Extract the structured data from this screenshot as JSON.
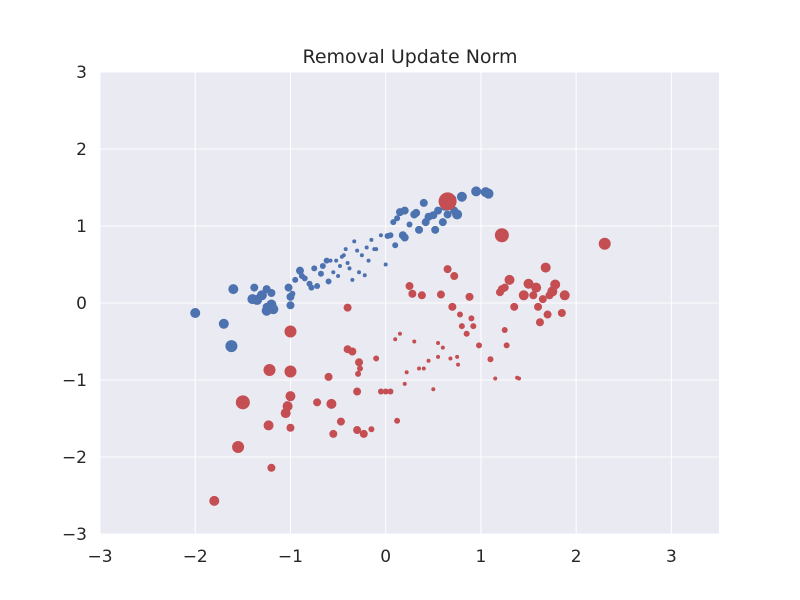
{
  "chart_data": {
    "type": "scatter",
    "title": "Removal Update Norm",
    "xlabel": "",
    "ylabel": "",
    "xlim": [
      -3,
      3.5
    ],
    "ylim": [
      -3,
      3
    ],
    "xticks": [
      -3,
      -2,
      -1,
      0,
      1,
      2,
      3
    ],
    "yticks": [
      -3,
      -2,
      -1,
      0,
      1,
      2,
      3
    ],
    "xtick_labels": [
      "−3",
      "−2",
      "−1",
      "0",
      "1",
      "2",
      "3"
    ],
    "ytick_labels": [
      "−3",
      "−2",
      "−1",
      "0",
      "1",
      "2",
      "3"
    ],
    "grid": true,
    "background": "#eaeaf2",
    "gridcolor": "#ffffff",
    "series": [
      {
        "color": "#4c72b0",
        "points": [
          [
            -2.0,
            -0.13,
            5
          ],
          [
            -1.7,
            -0.27,
            5
          ],
          [
            -1.6,
            0.18,
            5
          ],
          [
            -1.62,
            -0.56,
            6
          ],
          [
            -1.4,
            0.05,
            5
          ],
          [
            -1.35,
            0.04,
            5
          ],
          [
            -1.38,
            0.2,
            4
          ],
          [
            -1.3,
            0.1,
            5
          ],
          [
            -1.25,
            -0.05,
            4
          ],
          [
            -1.25,
            0.18,
            4
          ],
          [
            -1.2,
            0.13,
            4
          ],
          [
            -1.2,
            -0.02,
            5
          ],
          [
            -1.18,
            -0.08,
            5
          ],
          [
            -1.25,
            -0.1,
            5
          ],
          [
            -1.02,
            0.2,
            4
          ],
          [
            -1.0,
            0.08,
            4
          ],
          [
            -0.98,
            0.12,
            3
          ],
          [
            -1.0,
            -0.03,
            4
          ],
          [
            -0.95,
            0.3,
            3
          ],
          [
            -0.9,
            0.42,
            4
          ],
          [
            -0.88,
            0.35,
            3
          ],
          [
            -0.85,
            0.32,
            3
          ],
          [
            -0.8,
            0.25,
            3
          ],
          [
            -0.78,
            0.2,
            3
          ],
          [
            -0.75,
            0.45,
            3
          ],
          [
            -0.72,
            0.22,
            3
          ],
          [
            -0.68,
            0.38,
            3
          ],
          [
            -0.66,
            0.48,
            3
          ],
          [
            -0.62,
            0.55,
            3
          ],
          [
            -0.6,
            0.28,
            3
          ],
          [
            -0.58,
            0.55,
            2
          ],
          [
            -0.55,
            0.4,
            2
          ],
          [
            -0.52,
            0.55,
            2
          ],
          [
            -0.5,
            0.35,
            2
          ],
          [
            -0.48,
            0.48,
            2
          ],
          [
            -0.46,
            0.6,
            2
          ],
          [
            -0.44,
            0.62,
            2
          ],
          [
            -0.42,
            0.7,
            2
          ],
          [
            -0.4,
            0.52,
            2
          ],
          [
            -0.38,
            0.45,
            2
          ],
          [
            -0.35,
            0.3,
            2
          ],
          [
            -0.33,
            0.8,
            2
          ],
          [
            -0.3,
            0.68,
            2
          ],
          [
            -0.28,
            0.4,
            2
          ],
          [
            -0.25,
            0.62,
            2
          ],
          [
            -0.22,
            0.36,
            2
          ],
          [
            -0.2,
            0.72,
            2
          ],
          [
            -0.18,
            0.55,
            2
          ],
          [
            -0.15,
            0.82,
            2
          ],
          [
            -0.12,
            0.7,
            2
          ],
          [
            -0.1,
            0.7,
            2
          ],
          [
            -0.05,
            0.88,
            2
          ],
          [
            0.0,
            0.5,
            2
          ],
          [
            0.02,
            0.87,
            3
          ],
          [
            0.05,
            0.88,
            3
          ],
          [
            0.08,
            1.05,
            3
          ],
          [
            0.1,
            0.75,
            3
          ],
          [
            0.12,
            1.1,
            3
          ],
          [
            0.15,
            1.18,
            4
          ],
          [
            0.18,
            0.88,
            4
          ],
          [
            0.2,
            0.85,
            4
          ],
          [
            0.2,
            1.2,
            4
          ],
          [
            0.25,
            1.02,
            3
          ],
          [
            0.3,
            1.15,
            4
          ],
          [
            0.32,
            1.17,
            4
          ],
          [
            0.35,
            0.95,
            4
          ],
          [
            0.4,
            1.3,
            4
          ],
          [
            0.42,
            1.05,
            4
          ],
          [
            0.45,
            1.12,
            4
          ],
          [
            0.5,
            1.14,
            4
          ],
          [
            0.52,
            0.95,
            4
          ],
          [
            0.55,
            1.2,
            4
          ],
          [
            0.6,
            1.05,
            4
          ],
          [
            0.62,
            1.25,
            4
          ],
          [
            0.65,
            1.15,
            4
          ],
          [
            0.7,
            1.35,
            4
          ],
          [
            0.72,
            1.2,
            4
          ],
          [
            0.75,
            1.15,
            5
          ],
          [
            0.8,
            1.38,
            5
          ],
          [
            0.95,
            1.45,
            5
          ],
          [
            1.05,
            1.44,
            5
          ],
          [
            1.08,
            1.42,
            5
          ]
        ]
      },
      {
        "color": "#c44e52",
        "points": [
          [
            -1.8,
            -2.57,
            5
          ],
          [
            -1.5,
            -1.29,
            7
          ],
          [
            -1.55,
            -1.87,
            6
          ],
          [
            -1.2,
            -2.14,
            4
          ],
          [
            -1.22,
            -0.87,
            6
          ],
          [
            -1.23,
            -1.59,
            5
          ],
          [
            -1.0,
            -0.37,
            6
          ],
          [
            -1.0,
            -0.89,
            6
          ],
          [
            -1.0,
            -1.21,
            5
          ],
          [
            -1.03,
            -1.34,
            5
          ],
          [
            -1.05,
            -1.43,
            5
          ],
          [
            -1.0,
            -1.62,
            4
          ],
          [
            -0.72,
            -1.29,
            4
          ],
          [
            -0.57,
            -1.31,
            5
          ],
          [
            -0.6,
            -0.96,
            4
          ],
          [
            -0.55,
            -1.7,
            4
          ],
          [
            -0.47,
            -1.54,
            4
          ],
          [
            -0.4,
            -0.06,
            4
          ],
          [
            -0.4,
            -0.6,
            4
          ],
          [
            -0.35,
            -0.63,
            4
          ],
          [
            -0.3,
            -1.15,
            4
          ],
          [
            -0.28,
            -0.77,
            4
          ],
          [
            -0.27,
            -0.85,
            3
          ],
          [
            -0.29,
            -0.92,
            3
          ],
          [
            -0.3,
            -1.65,
            4
          ],
          [
            -0.23,
            -1.7,
            4
          ],
          [
            -0.15,
            -1.64,
            3
          ],
          [
            -0.1,
            -0.72,
            3
          ],
          [
            -0.05,
            -1.15,
            3
          ],
          [
            0.0,
            -1.15,
            3
          ],
          [
            0.05,
            -1.15,
            3
          ],
          [
            0.12,
            -1.53,
            3
          ],
          [
            0.1,
            -0.47,
            2
          ],
          [
            0.15,
            -0.4,
            2
          ],
          [
            0.2,
            -1.05,
            2
          ],
          [
            0.22,
            -0.9,
            2
          ],
          [
            0.25,
            0.22,
            4
          ],
          [
            0.28,
            0.12,
            4
          ],
          [
            0.3,
            -0.5,
            2
          ],
          [
            0.35,
            -0.85,
            2
          ],
          [
            0.38,
            0.1,
            4
          ],
          [
            0.4,
            -0.85,
            2
          ],
          [
            0.45,
            -0.75,
            2
          ],
          [
            0.5,
            -1.12,
            2
          ],
          [
            0.55,
            -0.52,
            2
          ],
          [
            0.55,
            -0.7,
            2
          ],
          [
            0.58,
            0.11,
            4
          ],
          [
            0.6,
            -0.58,
            2
          ],
          [
            0.65,
            0.44,
            4
          ],
          [
            0.68,
            -0.72,
            2
          ],
          [
            0.7,
            -0.05,
            4
          ],
          [
            0.72,
            0.35,
            4
          ],
          [
            0.75,
            -0.7,
            2
          ],
          [
            0.76,
            -0.8,
            2
          ],
          [
            0.78,
            -0.15,
            3
          ],
          [
            0.8,
            -0.3,
            3
          ],
          [
            0.85,
            -0.4,
            3
          ],
          [
            0.88,
            0.08,
            4
          ],
          [
            0.9,
            -0.2,
            3
          ],
          [
            0.92,
            -0.3,
            3
          ],
          [
            0.65,
            1.32,
            9
          ],
          [
            0.98,
            -0.55,
            3
          ],
          [
            1.1,
            -0.73,
            3
          ],
          [
            1.15,
            -0.98,
            2
          ],
          [
            1.2,
            0.14,
            4
          ],
          [
            1.22,
            0.18,
            4
          ],
          [
            1.25,
            0.2,
            4
          ],
          [
            1.25,
            -0.35,
            3
          ],
          [
            1.27,
            -0.55,
            3
          ],
          [
            1.3,
            0.3,
            5
          ],
          [
            1.35,
            -0.05,
            4
          ],
          [
            1.38,
            -0.97,
            2
          ],
          [
            1.4,
            -0.98,
            2
          ],
          [
            1.45,
            0.1,
            5
          ],
          [
            1.5,
            0.25,
            5
          ],
          [
            1.55,
            0.1,
            4
          ],
          [
            1.58,
            0.2,
            5
          ],
          [
            1.6,
            -0.05,
            4
          ],
          [
            1.62,
            -0.25,
            4
          ],
          [
            1.65,
            0.05,
            4
          ],
          [
            1.68,
            0.46,
            5
          ],
          [
            1.7,
            -0.15,
            4
          ],
          [
            1.72,
            0.1,
            4
          ],
          [
            1.75,
            0.15,
            5
          ],
          [
            1.78,
            0.24,
            5
          ],
          [
            1.85,
            -0.13,
            4
          ],
          [
            1.88,
            0.1,
            5
          ],
          [
            2.3,
            0.77,
            6
          ],
          [
            1.22,
            0.88,
            7
          ]
        ]
      }
    ]
  }
}
